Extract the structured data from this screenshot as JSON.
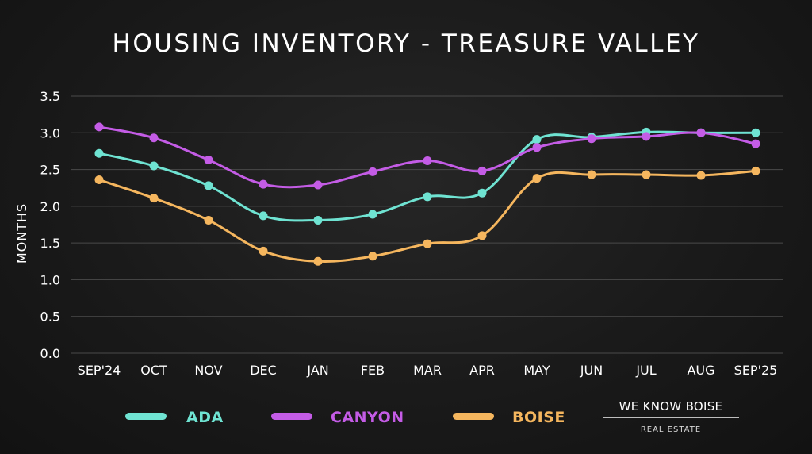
{
  "chart_data": {
    "type": "line",
    "title": "HOUSING INVENTORY - TREASURE VALLEY",
    "xlabel": "",
    "ylabel": "MONTHS",
    "categories": [
      "SEP'24",
      "OCT",
      "NOV",
      "DEC",
      "JAN",
      "FEB",
      "MAR",
      "APR",
      "MAY",
      "JUN",
      "JUL",
      "AUG",
      "SEP'25"
    ],
    "yticks": [
      "0.0",
      "0.5",
      "1.0",
      "1.5",
      "2.0",
      "2.5",
      "3.0",
      "3.5"
    ],
    "ylim": [
      0,
      3.5
    ],
    "grid": true,
    "legend_position": "bottom",
    "series": [
      {
        "name": "ADA",
        "color": "#6fe3d2",
        "values": [
          2.72,
          2.55,
          2.28,
          1.87,
          1.81,
          1.89,
          2.13,
          2.18,
          2.91,
          2.94,
          3.01,
          3.0,
          3.0
        ]
      },
      {
        "name": "CANYON",
        "color": "#c45ce6",
        "values": [
          3.08,
          2.93,
          2.63,
          2.3,
          2.29,
          2.47,
          2.62,
          2.48,
          2.8,
          2.92,
          2.95,
          3.0,
          2.85
        ]
      },
      {
        "name": "BOISE",
        "color": "#f5b65e",
        "values": [
          2.36,
          2.11,
          1.81,
          1.39,
          1.25,
          1.32,
          1.49,
          1.6,
          2.38,
          2.43,
          2.43,
          2.42,
          2.48
        ]
      }
    ]
  },
  "brand": {
    "name": "WE KNOW BOISE",
    "subtitle": "REAL ESTATE"
  }
}
